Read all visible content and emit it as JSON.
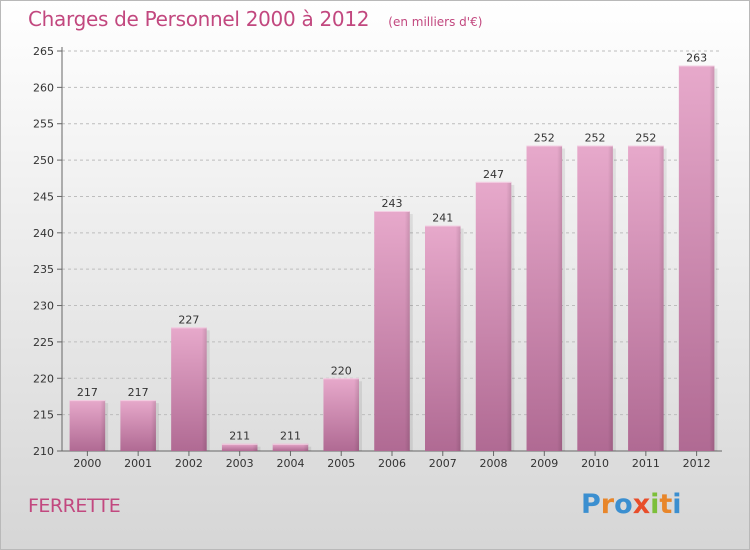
{
  "header": {
    "title": "Charges de Personnel 2000 à 2012",
    "subtitle": "(en milliers d'€)"
  },
  "footer": {
    "commune": "FERRETTE",
    "logo_letters": [
      "P",
      "r",
      "o",
      "x",
      "i",
      "t",
      "i"
    ],
    "logo_colors": [
      "#3b8fd0",
      "#e8862a",
      "#3b8fd0",
      "#e84d2a",
      "#7cbf3a",
      "#e8862a",
      "#3b8fd0"
    ]
  },
  "chart_data": {
    "type": "bar",
    "title": "Charges de Personnel 2000 à 2012",
    "subtitle": "(en milliers d'€)",
    "categories": [
      "2000",
      "2001",
      "2002",
      "2003",
      "2004",
      "2005",
      "2006",
      "2007",
      "2008",
      "2009",
      "2010",
      "2011",
      "2012"
    ],
    "values": [
      217,
      217,
      227,
      211,
      211,
      220,
      243,
      241,
      247,
      252,
      252,
      252,
      263
    ],
    "ylim": [
      210,
      265
    ],
    "yticks": [
      210,
      215,
      220,
      225,
      230,
      235,
      240,
      245,
      250,
      255,
      260,
      265
    ],
    "grid": true,
    "bar_color": "#d88bb6",
    "bar_color_dark": "#b06a93"
  }
}
